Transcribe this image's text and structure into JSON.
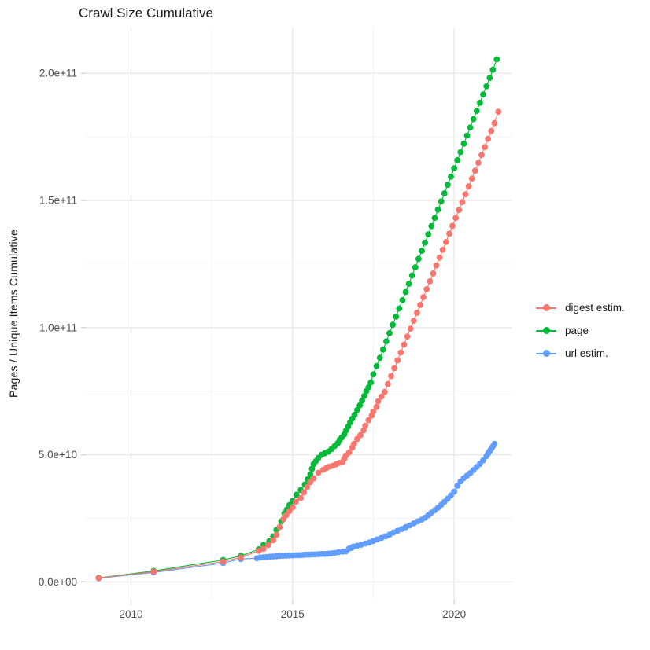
{
  "title": "Crawl Size Cumulative",
  "y_axis_title": "Pages / Unique Items Cumulative",
  "chart_data": {
    "type": "scatter",
    "title": "Crawl Size Cumulative",
    "xlabel": "",
    "ylabel": "Pages / Unique Items Cumulative",
    "grid": true,
    "legend_position": "right",
    "value_unit": "billions (1e9) of pages / items",
    "xlim": [
      2008.6,
      2021.8
    ],
    "ylim_e9": [
      -7,
      218
    ],
    "x_ticks": [
      2010,
      2015,
      2020
    ],
    "x_tick_labels": [
      "2010",
      "2015",
      "2020"
    ],
    "x_minor_ticks": [
      2012.5,
      2017.5
    ],
    "y_ticks_e9": [
      0,
      50,
      100,
      150,
      200
    ],
    "y_tick_labels": [
      "0.0e+00",
      "5.0e+10",
      "1.0e+11",
      "1.5e+11",
      "2.0e+11"
    ],
    "y_minor_ticks_e9": [
      25,
      75,
      125,
      175
    ],
    "series": [
      {
        "name": "digest estim.",
        "color": "#F8766D",
        "points": [
          [
            2009.0,
            1.5
          ],
          [
            2010.7,
            4.0
          ],
          [
            2012.85,
            8.0
          ],
          [
            2013.4,
            9.6
          ],
          [
            2013.95,
            12.2
          ],
          [
            2014.1,
            13.0
          ],
          [
            2014.25,
            14.5
          ],
          [
            2014.4,
            16.4
          ],
          [
            2014.5,
            18.5
          ],
          [
            2014.6,
            21.6
          ],
          [
            2014.72,
            24.7
          ],
          [
            2014.8,
            26.2
          ],
          [
            2014.9,
            27.8
          ],
          [
            2015.0,
            29.3
          ],
          [
            2015.1,
            31.5
          ],
          [
            2015.25,
            33.0
          ],
          [
            2015.35,
            35.2
          ],
          [
            2015.45,
            37.3
          ],
          [
            2015.55,
            39.2
          ],
          [
            2015.65,
            40.7
          ],
          [
            2015.8,
            42.9
          ],
          [
            2015.95,
            44.1
          ],
          [
            2016.05,
            44.8
          ],
          [
            2016.15,
            45.4
          ],
          [
            2016.25,
            45.7
          ],
          [
            2016.35,
            46.3
          ],
          [
            2016.45,
            46.8
          ],
          [
            2016.55,
            47.2
          ],
          [
            2016.6,
            48.5
          ],
          [
            2016.65,
            49.7
          ],
          [
            2016.75,
            50.9
          ],
          [
            2016.85,
            52.8
          ],
          [
            2016.9,
            54.3
          ],
          [
            2017.0,
            56.2
          ],
          [
            2017.1,
            57.7
          ],
          [
            2017.2,
            59.6
          ],
          [
            2017.25,
            61.4
          ],
          [
            2017.35,
            63.6
          ],
          [
            2017.45,
            65.4
          ],
          [
            2017.5,
            67.0
          ],
          [
            2017.6,
            68.8
          ],
          [
            2017.65,
            71.0
          ],
          [
            2017.75,
            72.8
          ],
          [
            2017.85,
            74.7
          ],
          [
            2017.95,
            77.8
          ],
          [
            2018.05,
            80.9
          ],
          [
            2018.15,
            84.0
          ],
          [
            2018.25,
            87.1
          ],
          [
            2018.35,
            90.2
          ],
          [
            2018.45,
            93.3
          ],
          [
            2018.55,
            96.5
          ],
          [
            2018.65,
            99.6
          ],
          [
            2018.75,
            102.7
          ],
          [
            2018.85,
            105.8
          ],
          [
            2018.95,
            108.9
          ],
          [
            2019.05,
            112.0
          ],
          [
            2019.15,
            115.1
          ],
          [
            2019.25,
            118.2
          ],
          [
            2019.35,
            121.3
          ],
          [
            2019.45,
            124.4
          ],
          [
            2019.55,
            127.5
          ],
          [
            2019.65,
            130.6
          ],
          [
            2019.75,
            133.7
          ],
          [
            2019.85,
            136.9
          ],
          [
            2019.95,
            140.0
          ],
          [
            2020.05,
            143.1
          ],
          [
            2020.15,
            146.2
          ],
          [
            2020.25,
            149.3
          ],
          [
            2020.35,
            152.4
          ],
          [
            2020.45,
            155.5
          ],
          [
            2020.55,
            158.6
          ],
          [
            2020.65,
            161.7
          ],
          [
            2020.75,
            164.8
          ],
          [
            2020.85,
            167.9
          ],
          [
            2020.95,
            171.0
          ],
          [
            2021.05,
            174.2
          ],
          [
            2021.15,
            177.3
          ],
          [
            2021.25,
            180.4
          ],
          [
            2021.37,
            184.9
          ]
        ]
      },
      {
        "name": "page",
        "color": "#00BA38",
        "points": [
          [
            2009.0,
            1.6
          ],
          [
            2010.7,
            4.3
          ],
          [
            2012.85,
            8.6
          ],
          [
            2013.4,
            10.2
          ],
          [
            2013.95,
            12.8
          ],
          [
            2014.1,
            14.5
          ],
          [
            2014.28,
            16.0
          ],
          [
            2014.4,
            17.9
          ],
          [
            2014.5,
            20.4
          ],
          [
            2014.65,
            23.8
          ],
          [
            2014.75,
            26.9
          ],
          [
            2014.82,
            28.4
          ],
          [
            2014.9,
            30.2
          ],
          [
            2015.0,
            31.8
          ],
          [
            2015.12,
            34.3
          ],
          [
            2015.25,
            36.1
          ],
          [
            2015.38,
            38.3
          ],
          [
            2015.47,
            40.4
          ],
          [
            2015.55,
            42.3
          ],
          [
            2015.6,
            44.5
          ],
          [
            2015.65,
            46.3
          ],
          [
            2015.72,
            47.5
          ],
          [
            2015.8,
            48.8
          ],
          [
            2015.9,
            50.0
          ],
          [
            2016.0,
            50.6
          ],
          [
            2016.1,
            51.2
          ],
          [
            2016.2,
            52.2
          ],
          [
            2016.3,
            53.4
          ],
          [
            2016.4,
            54.6
          ],
          [
            2016.46,
            55.9
          ],
          [
            2016.52,
            56.8
          ],
          [
            2016.6,
            58.0
          ],
          [
            2016.66,
            59.6
          ],
          [
            2016.72,
            61.1
          ],
          [
            2016.78,
            62.7
          ],
          [
            2016.85,
            64.2
          ],
          [
            2016.92,
            65.7
          ],
          [
            2017.0,
            67.6
          ],
          [
            2017.08,
            69.4
          ],
          [
            2017.15,
            71.3
          ],
          [
            2017.22,
            73.1
          ],
          [
            2017.28,
            75.0
          ],
          [
            2017.35,
            76.5
          ],
          [
            2017.42,
            78.4
          ],
          [
            2017.5,
            81.6
          ],
          [
            2017.6,
            84.9
          ],
          [
            2017.7,
            88.1
          ],
          [
            2017.8,
            91.3
          ],
          [
            2017.9,
            94.6
          ],
          [
            2018.0,
            97.8
          ],
          [
            2018.1,
            101.1
          ],
          [
            2018.2,
            104.3
          ],
          [
            2018.3,
            107.5
          ],
          [
            2018.4,
            110.8
          ],
          [
            2018.5,
            114.0
          ],
          [
            2018.6,
            117.2
          ],
          [
            2018.7,
            120.5
          ],
          [
            2018.8,
            123.7
          ],
          [
            2018.9,
            127.0
          ],
          [
            2019.0,
            130.2
          ],
          [
            2019.1,
            133.4
          ],
          [
            2019.2,
            136.7
          ],
          [
            2019.3,
            139.9
          ],
          [
            2019.4,
            143.1
          ],
          [
            2019.5,
            146.4
          ],
          [
            2019.6,
            149.6
          ],
          [
            2019.7,
            152.8
          ],
          [
            2019.8,
            156.1
          ],
          [
            2019.9,
            159.3
          ],
          [
            2020.0,
            162.6
          ],
          [
            2020.1,
            165.8
          ],
          [
            2020.2,
            169.0
          ],
          [
            2020.3,
            172.3
          ],
          [
            2020.4,
            175.5
          ],
          [
            2020.5,
            178.7
          ],
          [
            2020.6,
            182.0
          ],
          [
            2020.7,
            185.2
          ],
          [
            2020.8,
            188.4
          ],
          [
            2020.9,
            191.7
          ],
          [
            2021.0,
            194.9
          ],
          [
            2021.1,
            198.2
          ],
          [
            2021.2,
            201.4
          ],
          [
            2021.32,
            205.5
          ]
        ]
      },
      {
        "name": "url estim.",
        "color": "#619CFF",
        "points": [
          [
            2009.0,
            1.4
          ],
          [
            2010.7,
            3.7
          ],
          [
            2012.85,
            7.4
          ],
          [
            2013.4,
            9.0
          ],
          [
            2013.9,
            9.3
          ],
          [
            2014.0,
            9.6
          ],
          [
            2014.1,
            9.7
          ],
          [
            2014.2,
            9.8
          ],
          [
            2014.3,
            9.9
          ],
          [
            2014.4,
            10.0
          ],
          [
            2014.5,
            10.1
          ],
          [
            2014.6,
            10.2
          ],
          [
            2014.7,
            10.2
          ],
          [
            2014.8,
            10.3
          ],
          [
            2014.9,
            10.4
          ],
          [
            2015.0,
            10.4
          ],
          [
            2015.1,
            10.5
          ],
          [
            2015.2,
            10.5
          ],
          [
            2015.3,
            10.6
          ],
          [
            2015.4,
            10.7
          ],
          [
            2015.5,
            10.7
          ],
          [
            2015.6,
            10.8
          ],
          [
            2015.7,
            10.8
          ],
          [
            2015.8,
            10.9
          ],
          [
            2015.9,
            11.0
          ],
          [
            2016.0,
            11.0
          ],
          [
            2016.1,
            11.1
          ],
          [
            2016.2,
            11.2
          ],
          [
            2016.3,
            11.4
          ],
          [
            2016.42,
            11.7
          ],
          [
            2016.55,
            11.9
          ],
          [
            2016.65,
            12.0
          ],
          [
            2016.75,
            13.1
          ],
          [
            2016.82,
            13.4
          ],
          [
            2016.88,
            13.9
          ],
          [
            2017.0,
            14.2
          ],
          [
            2017.12,
            14.6
          ],
          [
            2017.25,
            15.1
          ],
          [
            2017.38,
            15.5
          ],
          [
            2017.5,
            16.1
          ],
          [
            2017.62,
            16.7
          ],
          [
            2017.75,
            17.3
          ],
          [
            2017.88,
            17.9
          ],
          [
            2018.0,
            18.6
          ],
          [
            2018.12,
            19.4
          ],
          [
            2018.25,
            20.1
          ],
          [
            2018.38,
            20.8
          ],
          [
            2018.5,
            21.5
          ],
          [
            2018.62,
            22.2
          ],
          [
            2018.75,
            23.0
          ],
          [
            2018.88,
            23.8
          ],
          [
            2019.0,
            24.5
          ],
          [
            2019.1,
            25.2
          ],
          [
            2019.2,
            26.2
          ],
          [
            2019.3,
            27.2
          ],
          [
            2019.4,
            28.2
          ],
          [
            2019.5,
            29.2
          ],
          [
            2019.6,
            30.3
          ],
          [
            2019.7,
            31.5
          ],
          [
            2019.8,
            32.7
          ],
          [
            2019.9,
            34.0
          ],
          [
            2020.0,
            35.5
          ],
          [
            2020.1,
            37.8
          ],
          [
            2020.2,
            39.5
          ],
          [
            2020.3,
            40.8
          ],
          [
            2020.4,
            41.8
          ],
          [
            2020.5,
            42.8
          ],
          [
            2020.6,
            44.0
          ],
          [
            2020.7,
            45.2
          ],
          [
            2020.8,
            46.4
          ],
          [
            2020.9,
            47.8
          ],
          [
            2021.0,
            49.5
          ],
          [
            2021.05,
            50.5
          ],
          [
            2021.1,
            51.5
          ],
          [
            2021.15,
            52.3
          ],
          [
            2021.2,
            53.3
          ],
          [
            2021.25,
            54.3
          ]
        ]
      }
    ]
  },
  "legend": {
    "items": [
      {
        "label": "digest estim.",
        "color": "#F8766D"
      },
      {
        "label": "page",
        "color": "#00BA38"
      },
      {
        "label": "url estim.",
        "color": "#619CFF"
      }
    ]
  },
  "style_colors": {
    "grid_major": "#e8e8e8",
    "grid_minor": "#f3f3f3",
    "tick_mark": "#cccccc",
    "tick_label": "#4d4d4d"
  }
}
